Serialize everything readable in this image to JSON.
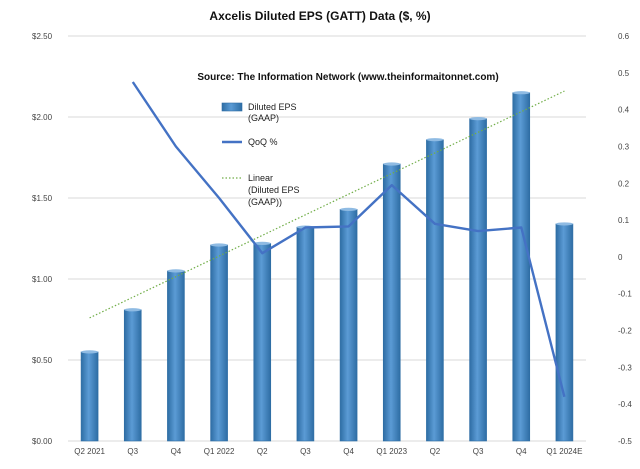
{
  "chart_data": {
    "type": "bar",
    "title": "Axcelis Diluted EPS (GATT) Data ($, %)",
    "subtitle": "Source: The Information Network (www.theinformaitonnet.com)",
    "categories": [
      "Q2 2021",
      "Q3",
      "Q4",
      "Q1 2022",
      "Q2",
      "Q3",
      "Q4",
      "Q1 2023",
      "Q2",
      "Q3",
      "Q4",
      "Q1 2024E"
    ],
    "series": [
      {
        "name": "Diluted EPS (GAAP)",
        "type": "bar",
        "axis": "left",
        "values": [
          0.55,
          0.81,
          1.05,
          1.21,
          1.22,
          1.32,
          1.43,
          1.71,
          1.86,
          1.99,
          2.15,
          1.34
        ]
      },
      {
        "name": "QoQ %",
        "type": "line",
        "axis": "right",
        "values": [
          null,
          0.475,
          0.3,
          0.16,
          0.01,
          0.08,
          0.083,
          0.195,
          0.09,
          0.07,
          0.08,
          -0.38
        ]
      },
      {
        "name": "Linear (Diluted EPS (GAAP))",
        "type": "trendline",
        "axis": "left",
        "values": [
          0.76,
          0.887,
          1.015,
          1.142,
          1.269,
          1.396,
          1.524,
          1.651,
          1.778,
          1.905,
          2.033,
          2.16
        ]
      }
    ],
    "y_left": {
      "ylim": [
        0,
        2.5
      ],
      "ticks": [
        0,
        0.5,
        1.0,
        1.5,
        2.0,
        2.5
      ],
      "tick_labels": [
        "$0.00",
        "$0.50",
        "$1.00",
        "$1.50",
        "$2.00",
        "$2.50"
      ]
    },
    "y_right": {
      "ylim": [
        -0.5,
        0.6
      ],
      "ticks": [
        -0.5,
        -0.4,
        -0.3,
        -0.2,
        -0.1,
        0,
        0.1,
        0.2,
        0.3,
        0.4,
        0.5,
        0.6
      ],
      "tick_labels": [
        "-0.5",
        "-0.4",
        "-0.3",
        "-0.2",
        "-0.1",
        "0",
        "0.1",
        "0.2",
        "0.3",
        "0.4",
        "0.5",
        "0.6"
      ]
    },
    "legend": {
      "placement": "upper-left-inside",
      "entries": [
        {
          "label_lines": [
            "Diluted EPS",
            "(GAAP)"
          ],
          "kind": "bar"
        },
        {
          "label_lines": [
            "QoQ %"
          ],
          "kind": "line"
        },
        {
          "label_lines": [
            "Linear",
            "(Diluted EPS",
            "(GAAP))"
          ],
          "kind": "dotted"
        }
      ]
    },
    "grid": "horizontal",
    "colors": {
      "bar": "#5b9bd5",
      "bar_dark": "#2e6da4",
      "line": "#4472c4",
      "trend": "#70ad47",
      "grid": "#d9d9d9"
    }
  }
}
